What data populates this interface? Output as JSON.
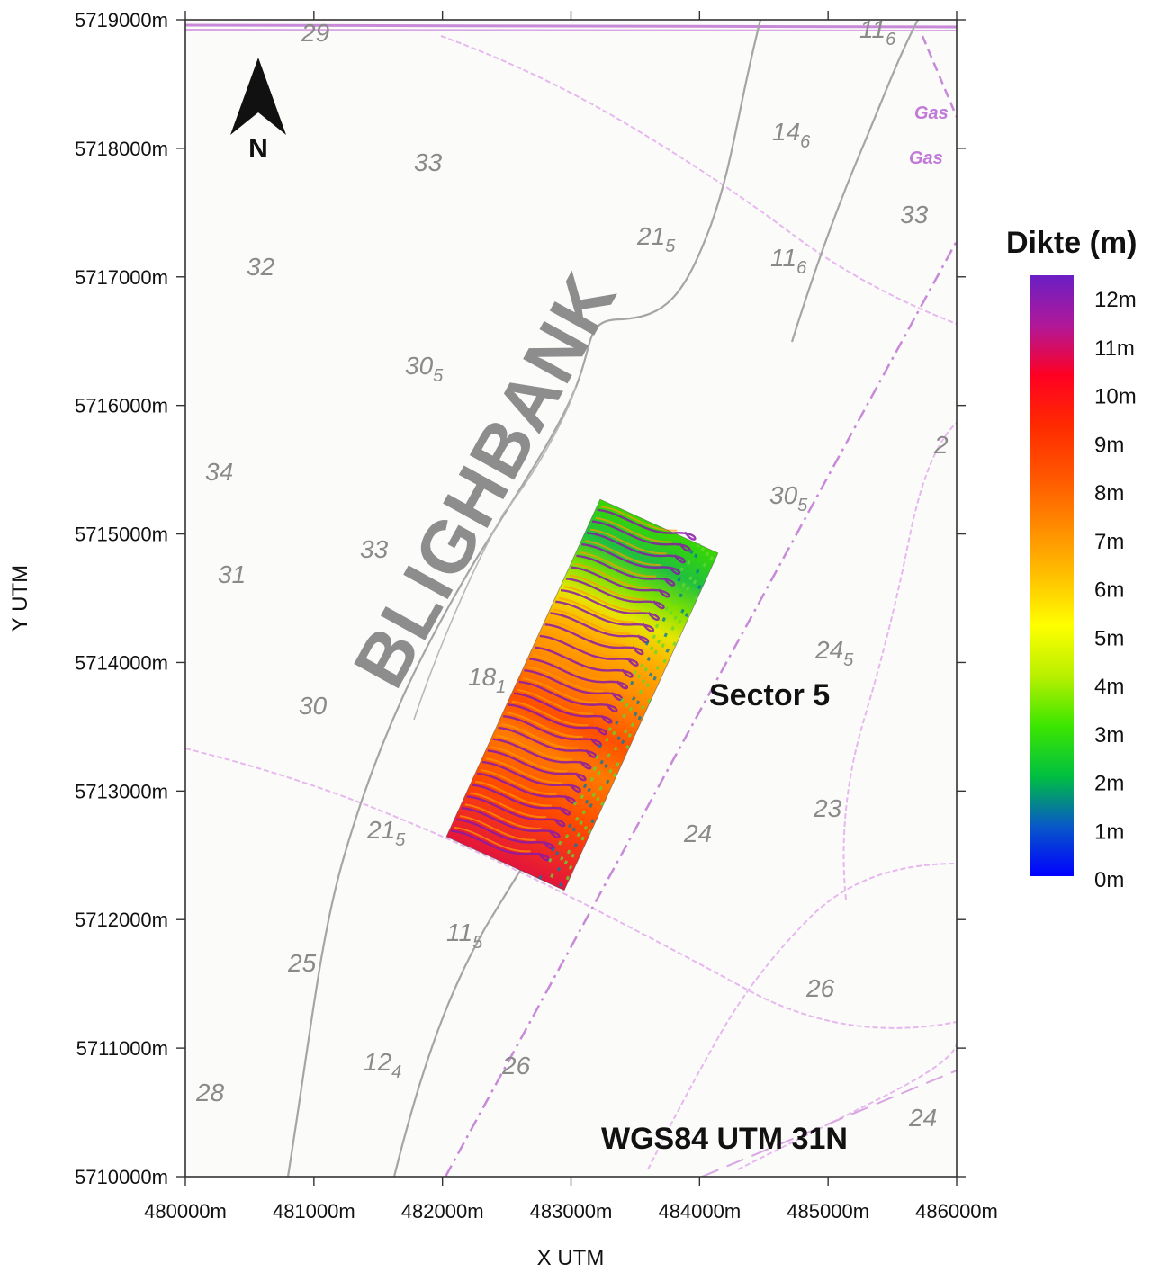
{
  "x_axis": {
    "title": "X UTM",
    "ticks": [
      "480000m",
      "481000m",
      "482000m",
      "483000m",
      "484000m",
      "485000m",
      "486000m"
    ]
  },
  "y_axis": {
    "title": "Y UTM",
    "ticks": [
      "5719000m",
      "5718000m",
      "5717000m",
      "5716000m",
      "5715000m",
      "5714000m",
      "5713000m",
      "5712000m",
      "5711000m",
      "5710000m"
    ]
  },
  "north_arrow": {
    "label": "N"
  },
  "bank_name": "BLIGHBANK",
  "sector_label": "Sector 5",
  "crs_label": "WGS84 UTM 31N",
  "chart_labels": {
    "gas1": "Gas",
    "gas2": "Gas",
    "d29": "29",
    "d116a": "11",
    "d116a_sub": "6",
    "d146": "14",
    "d146_sub": "6",
    "d33a": "33",
    "d33b": "33",
    "d33c": "33",
    "d33d": "33",
    "d32": "32",
    "d215a": "21",
    "d215a_sub": "5",
    "d116b": "11",
    "d116b_sub": "6",
    "d305a": "30",
    "d305a_sub": "5",
    "d34": "34",
    "d305b": "30",
    "d305b_sub": "5",
    "d2x": "2",
    "d31": "31",
    "d245": "24",
    "d245_sub": "5",
    "d181": "18",
    "d181_sub": "1",
    "d30": "30",
    "d23": "23",
    "d215b": "21",
    "d215b_sub": "5",
    "d24a": "24",
    "d115": "11",
    "d115_sub": "5",
    "d25": "25",
    "d26a": "26",
    "d124": "12",
    "d124_sub": "4",
    "d26b": "26",
    "d28": "28",
    "d24b": "24"
  },
  "legend": {
    "title": "Dikte (m)",
    "labels": [
      "12m",
      "11m",
      "10m",
      "9m",
      "8m",
      "7m",
      "6m",
      "5m",
      "4m",
      "3m",
      "2m",
      "1m",
      "0m"
    ],
    "colors": [
      "#6a1fc4",
      "#b0189a",
      "#e3143c",
      "#ff2a00",
      "#ff5500",
      "#ff8a00",
      "#ffc000",
      "#ffff00",
      "#bff000",
      "#4ce600",
      "#00c832",
      "#0a58c8",
      "#0000ff"
    ]
  }
}
